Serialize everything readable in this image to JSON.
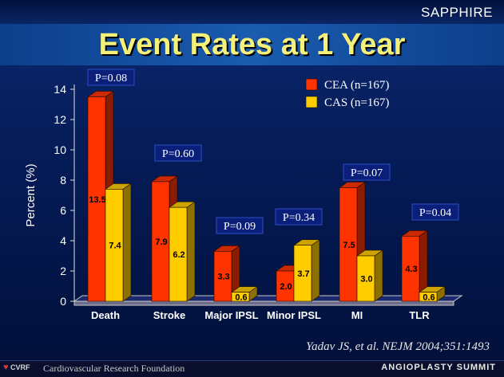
{
  "header": {
    "brand": "SAPPHIRE",
    "title": "Event Rates at 1 Year"
  },
  "footer": {
    "logo_text": "CVRF",
    "foundation": "Cardiovascular Research Foundation",
    "summit": "ANGIOPLASTY SUMMIT"
  },
  "citation": "Yadav JS, et al. NEJM 2004;351:1493",
  "colors": {
    "cea": "#ff3300",
    "cas": "#ffcc00",
    "pbox_bg": "#0a1f7a",
    "pbox_border": "#2d4cc4"
  },
  "chart_data": {
    "type": "bar",
    "ylabel": "Percent (%)",
    "ylim": [
      0,
      14
    ],
    "yticks": [
      0,
      2,
      4,
      6,
      8,
      10,
      12,
      14
    ],
    "categories": [
      "Death",
      "Stroke",
      "Major IPSL",
      "Minor IPSL",
      "MI",
      "TLR"
    ],
    "series": [
      {
        "name": "CEA (n=167)",
        "values": [
          13.5,
          7.9,
          3.3,
          2.0,
          7.5,
          4.3
        ],
        "labels": [
          "13.5",
          "7.9",
          "3.3",
          "2.0",
          "7.5",
          "4.3"
        ]
      },
      {
        "name": "CAS (n=167)",
        "values": [
          7.4,
          6.2,
          0.6,
          3.7,
          3.0,
          0.6
        ],
        "labels": [
          "7.4",
          "6.2",
          "0.6",
          "3.7",
          "3.0",
          "0.6"
        ]
      }
    ],
    "p_values": [
      "P=0.08",
      "P=0.60",
      "P=0.09",
      "P=0.34",
      "P=0.07",
      "P=0.04"
    ],
    "grid": false,
    "legend": "top-right",
    "chart_style": "3d-bar"
  }
}
